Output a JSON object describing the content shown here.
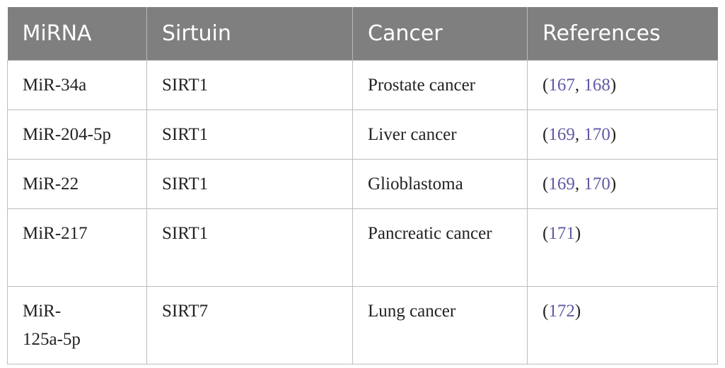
{
  "table": {
    "headers": [
      "MiRNA",
      "Sirtuin",
      "Cancer",
      "References"
    ],
    "rows": [
      {
        "mirna": "MiR-34a",
        "sirtuin": "SIRT1",
        "cancer": "Prostate cancer",
        "refs": [
          "167",
          "168"
        ]
      },
      {
        "mirna": "MiR-204-5p",
        "sirtuin": "SIRT1",
        "cancer": "Liver cancer",
        "refs": [
          "169",
          "170"
        ]
      },
      {
        "mirna": "MiR-22",
        "sirtuin": "SIRT1",
        "cancer": "Glioblastoma",
        "refs": [
          "169",
          "170"
        ]
      },
      {
        "mirna": "MiR-217",
        "sirtuin": "SIRT1",
        "cancer": "Pancreatic cancer",
        "refs": [
          "171"
        ]
      },
      {
        "mirna": "MiR-125a-5p",
        "sirtuin": "SIRT7",
        "cancer": "Lung cancer",
        "refs": [
          "172"
        ]
      }
    ],
    "colors": {
      "header_bg": "#7f7f7f",
      "header_text": "#ffffff",
      "link": "#5f5aa6",
      "border": "#bdbdbd"
    }
  }
}
